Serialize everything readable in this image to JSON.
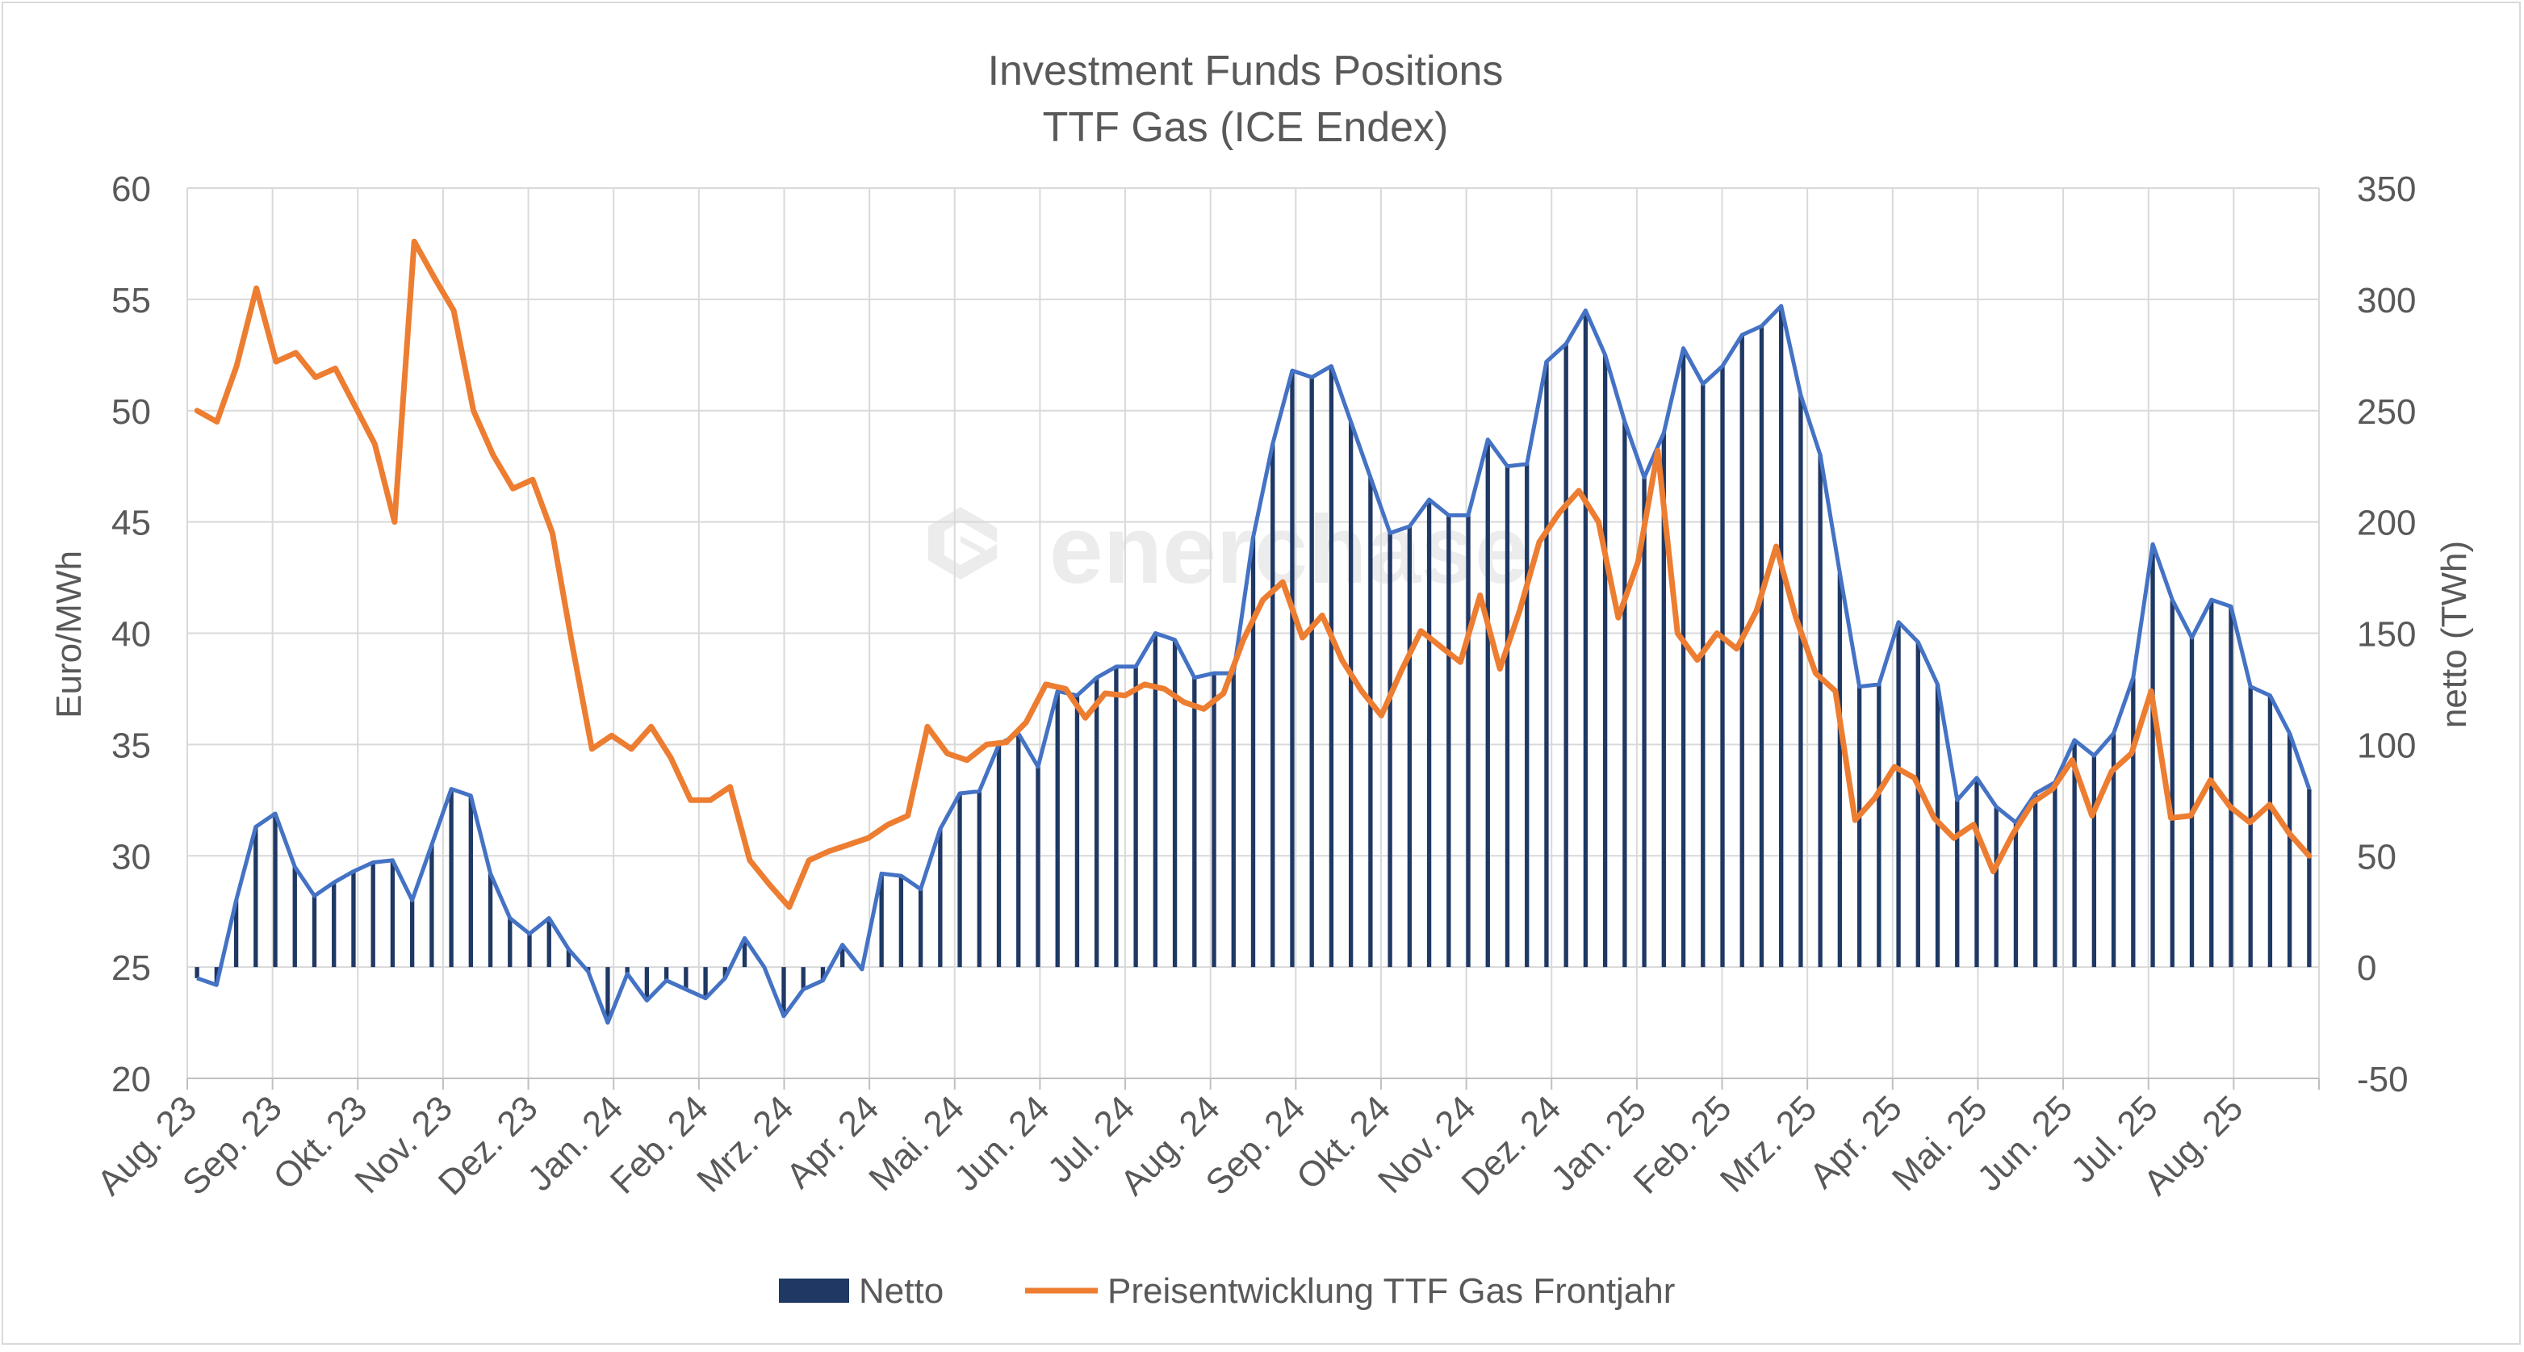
{
  "chart_data": {
    "type": "bar+line",
    "title": "Investment Funds Positions",
    "subtitle": "TTF Gas (ICE Endex)",
    "ylabel_left": "Euro/MWh",
    "ylabel_right": "netto (TWh)",
    "ylim_left": [
      20,
      60
    ],
    "yticks_left": [
      20,
      25,
      30,
      35,
      40,
      45,
      50,
      55,
      60
    ],
    "ylim_right": [
      -50,
      350
    ],
    "yticks_right": [
      -50,
      0,
      50,
      100,
      150,
      200,
      250,
      300,
      350
    ],
    "x_tick_labels": [
      "Aug. 23",
      "Sep. 23",
      "Okt. 23",
      "Nov. 23",
      "Dez. 23",
      "Jan. 24",
      "Feb. 24",
      "Mrz. 24",
      "Apr. 24",
      "Mai. 24",
      "Jun. 24",
      "Jul. 24",
      "Aug. 24",
      "Sep. 24",
      "Okt. 24",
      "Nov. 24",
      "Dez. 24",
      "Jan. 25",
      "Feb. 25",
      "Mrz. 25",
      "Apr. 25",
      "Mai. 25",
      "Jun. 25",
      "Jul. 25",
      "Aug. 25"
    ],
    "grid": true,
    "legend_position": "bottom",
    "watermark": "enerchase",
    "series": [
      {
        "name": "Netto",
        "type": "bar",
        "axis": "right",
        "color": "#1f3864",
        "outline_color": "#4472c4",
        "values": [
          -5,
          -8,
          30,
          63,
          69,
          45,
          32,
          38,
          43,
          47,
          48,
          30,
          55,
          80,
          77,
          42,
          22,
          15,
          22,
          8,
          -2,
          -25,
          -3,
          -15,
          -6,
          -10,
          -14,
          -5,
          13,
          0,
          -22,
          -10,
          -6,
          10,
          -1,
          42,
          41,
          35,
          62,
          78,
          79,
          100,
          105,
          90,
          124,
          122,
          130,
          135,
          135,
          150,
          147,
          130,
          132,
          132,
          193,
          235,
          268,
          265,
          270,
          245,
          220,
          195,
          198,
          210,
          203,
          203,
          237,
          225,
          226,
          272,
          280,
          295,
          275,
          245,
          220,
          240,
          278,
          262,
          270,
          284,
          288,
          297,
          257,
          230,
          177,
          126,
          127,
          155,
          146,
          127,
          75,
          85,
          72,
          65,
          78,
          83,
          102,
          95,
          105,
          130,
          190,
          165,
          148,
          165,
          162,
          126,
          122,
          105,
          80
        ]
      },
      {
        "name": "Preisentwicklung TTF Gas Frontjahr",
        "type": "line",
        "axis": "left",
        "color": "#ed7d31",
        "values": [
          50.0,
          49.5,
          52.0,
          55.5,
          52.2,
          52.6,
          51.5,
          51.9,
          50.2,
          48.5,
          45.0,
          57.6,
          56.0,
          54.5,
          50.0,
          48.0,
          46.5,
          46.9,
          44.5,
          39.5,
          34.8,
          35.4,
          34.8,
          35.8,
          34.4,
          32.5,
          32.5,
          33.1,
          29.8,
          28.7,
          27.7,
          29.8,
          30.2,
          30.5,
          30.8,
          31.4,
          31.8,
          35.8,
          34.6,
          34.3,
          35.0,
          35.1,
          36.0,
          37.7,
          37.5,
          36.2,
          37.3,
          37.2,
          37.7,
          37.5,
          36.9,
          36.6,
          37.3,
          39.7,
          41.5,
          42.3,
          39.8,
          40.8,
          38.8,
          37.4,
          36.3,
          38.3,
          40.1,
          39.4,
          38.7,
          41.7,
          38.4,
          41.0,
          44.1,
          45.4,
          46.4,
          45.0,
          40.7,
          43.2,
          48.2,
          40.0,
          38.8,
          40.0,
          39.3,
          41.0,
          43.9,
          40.7,
          38.2,
          37.4,
          31.6,
          32.6,
          34.0,
          33.5,
          31.7,
          30.8,
          31.4,
          29.3,
          31.0,
          32.4,
          33.0,
          34.3,
          31.8,
          33.8,
          34.6,
          37.4,
          31.7,
          31.8,
          33.4,
          32.2,
          31.5,
          32.3,
          31.0,
          30.0
        ]
      }
    ]
  }
}
